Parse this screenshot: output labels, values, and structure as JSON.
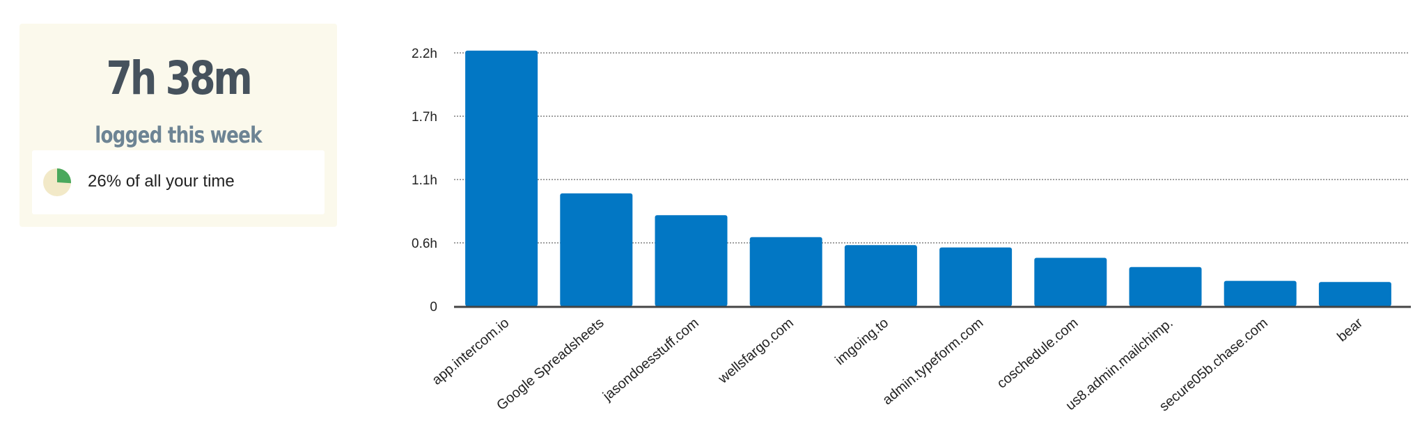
{
  "summary": {
    "total_time": "7h 38m",
    "caption": "logged this week",
    "share_text": "26% of all your time",
    "share_fraction": 0.26
  },
  "colors": {
    "bar": "#0277c4",
    "pie_fill": "#4aa85c",
    "pie_bg": "#f2e9c8",
    "card_bg": "#fbf9ec",
    "axis": "#444444",
    "grid": "#666666"
  },
  "chart_data": {
    "type": "bar",
    "categories": [
      "app.intercom.io",
      "Google Spreadsheets",
      "jasondoesstuff.com",
      "wellsfargo.com",
      "imgoing.to",
      "admin.typeform.com",
      "coschedule.com",
      "us8.admin.mailchimp.",
      "secure05b.chase.com",
      "bear"
    ],
    "values": [
      2.22,
      0.98,
      0.79,
      0.6,
      0.53,
      0.51,
      0.42,
      0.34,
      0.22,
      0.21
    ],
    "y_ticks": [
      {
        "value": 0,
        "label": "0"
      },
      {
        "value": 0.55,
        "label": "0.6h"
      },
      {
        "value": 1.1,
        "label": "1.1h"
      },
      {
        "value": 1.65,
        "label": "1.7h"
      },
      {
        "value": 2.2,
        "label": "2.2h"
      }
    ],
    "ylim": [
      0,
      2.2
    ],
    "grid": true,
    "legend": "none",
    "title": "",
    "xlabel": "",
    "ylabel": ""
  }
}
